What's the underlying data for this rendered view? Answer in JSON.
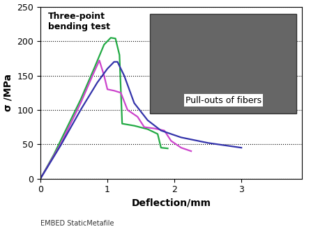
{
  "chart_data": {
    "type": "line",
    "x_label": "Deflection/mm",
    "y_label": "σ /MPa",
    "annotations": [
      "Three-point\nbending test",
      "Pull-outs of fibers"
    ],
    "footer": "EMBED StaticMetafile",
    "xlim": [
      0,
      3.9
    ],
    "xticks": [
      0,
      1,
      2,
      3
    ],
    "ylim": [
      0,
      250
    ],
    "yticks": [
      0,
      50,
      100,
      150,
      200,
      250
    ],
    "grid": true,
    "series": [
      {
        "color": "#22aa44",
        "x": [
          0,
          0.2,
          0.4,
          0.6,
          0.8,
          0.95,
          1.05,
          1.12,
          1.18,
          1.22,
          1.4,
          1.6,
          1.75,
          1.8,
          1.9
        ],
        "values": [
          0,
          35,
          75,
          115,
          160,
          195,
          205,
          204,
          180,
          80,
          77,
          72,
          65,
          45,
          44
        ]
      },
      {
        "color": "#cc44cc",
        "x": [
          0,
          0.3,
          0.6,
          0.8,
          0.88,
          0.95,
          1.0,
          1.1,
          1.2,
          1.3,
          1.45,
          1.55,
          1.7,
          1.85,
          1.95,
          2.1,
          2.25
        ],
        "values": [
          0,
          50,
          110,
          155,
          172,
          150,
          130,
          128,
          125,
          100,
          90,
          75,
          73,
          70,
          55,
          45,
          40
        ]
      },
      {
        "color": "#3333aa",
        "x": [
          0,
          0.3,
          0.6,
          0.85,
          1.0,
          1.1,
          1.15,
          1.25,
          1.4,
          1.6,
          1.8,
          2.1,
          2.5,
          3.0
        ],
        "values": [
          0,
          48,
          100,
          140,
          160,
          170,
          170,
          150,
          110,
          85,
          70,
          60,
          52,
          45
        ]
      }
    ]
  }
}
